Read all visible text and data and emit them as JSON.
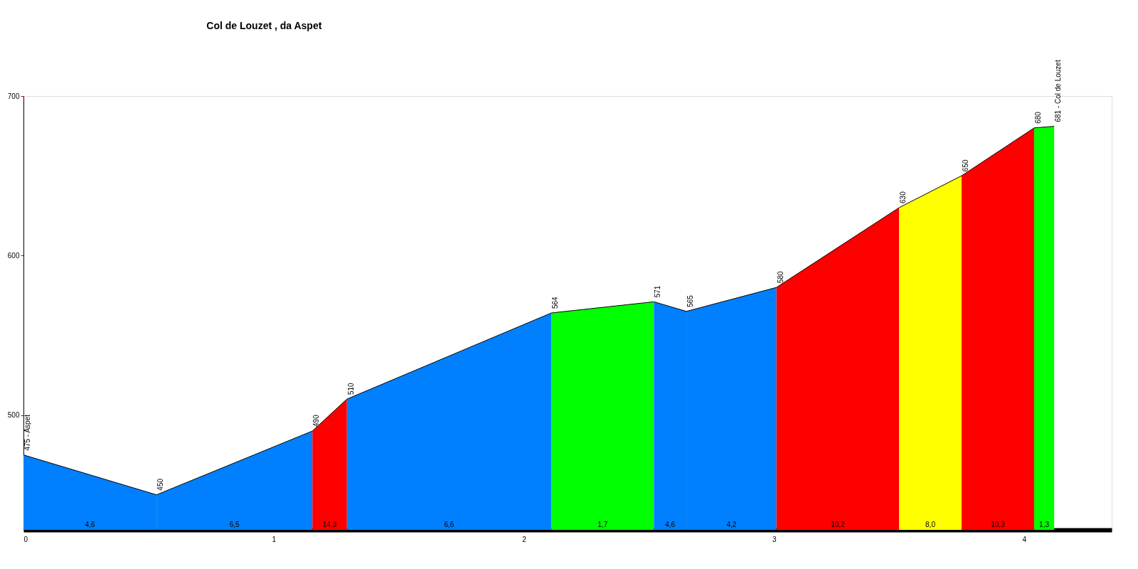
{
  "chart_data": {
    "type": "area",
    "title": "Col de Louzet , da Aspet",
    "xlim": [
      0,
      4.35
    ],
    "xticks": [
      0,
      1,
      2,
      3,
      4
    ],
    "ylim": [
      428,
      700
    ],
    "yticks": [
      500,
      600,
      700
    ],
    "series": [
      {
        "x": [
          0,
          0.532
        ],
        "values": [
          475,
          450
        ],
        "color": "#0080ff",
        "value_labels": [
          "475 - Aspet",
          null
        ]
      },
      {
        "x": [
          0.532,
          1.155
        ],
        "values": [
          450,
          490
        ],
        "color": "#0080ff",
        "value_labels": [
          "450",
          null
        ]
      },
      {
        "x": [
          1.155,
          1.293
        ],
        "values": [
          490,
          510
        ],
        "color": "#ff0000",
        "value_labels": [
          "490",
          null
        ]
      },
      {
        "x": [
          1.293,
          2.11
        ],
        "values": [
          510,
          564
        ],
        "color": "#0080ff",
        "value_labels": [
          "510",
          null
        ]
      },
      {
        "x": [
          2.11,
          2.52
        ],
        "values": [
          564,
          571
        ],
        "color": "#00ff00",
        "value_labels": [
          "564",
          null
        ]
      },
      {
        "x": [
          2.52,
          2.65
        ],
        "values": [
          571,
          565
        ],
        "color": "#0080ff",
        "value_labels": [
          "571",
          null
        ]
      },
      {
        "x": [
          2.65,
          3.01
        ],
        "values": [
          565,
          580
        ],
        "color": "#0080ff",
        "value_labels": [
          "565",
          null
        ]
      },
      {
        "x": [
          3.01,
          3.5
        ],
        "values": [
          580,
          630
        ],
        "color": "#ff0000",
        "value_labels": [
          "580",
          null
        ]
      },
      {
        "x": [
          3.5,
          3.75
        ],
        "values": [
          630,
          650
        ],
        "color": "#ffff00",
        "value_labels": [
          "630",
          null
        ]
      },
      {
        "x": [
          3.75,
          4.04
        ],
        "values": [
          650,
          680
        ],
        "color": "#ff0000",
        "value_labels": [
          "650",
          null
        ]
      },
      {
        "x": [
          4.04,
          4.12
        ],
        "values": [
          680,
          681
        ],
        "color": "#00ff00",
        "value_labels": [
          "680",
          "681 - Col de Louzet"
        ]
      }
    ],
    "annotations": [
      {
        "text": "4,6",
        "x": 0.266,
        "y": 428
      },
      {
        "text": "6,5",
        "x": 0.8435,
        "y": 428
      },
      {
        "text": "14,3",
        "x": 1.224,
        "y": 428
      },
      {
        "text": "6,6",
        "x": 1.7015,
        "y": 428
      },
      {
        "text": "1,7",
        "x": 2.315,
        "y": 428
      },
      {
        "text": "4,6",
        "x": 2.585,
        "y": 428
      },
      {
        "text": "4,2",
        "x": 2.83,
        "y": 428
      },
      {
        "text": "10,2",
        "x": 3.255,
        "y": 428
      },
      {
        "text": "8,0",
        "x": 3.625,
        "y": 428
      },
      {
        "text": "10,3",
        "x": 3.895,
        "y": 428
      },
      {
        "text": "1,3",
        "x": 4.08,
        "y": 428
      }
    ]
  }
}
